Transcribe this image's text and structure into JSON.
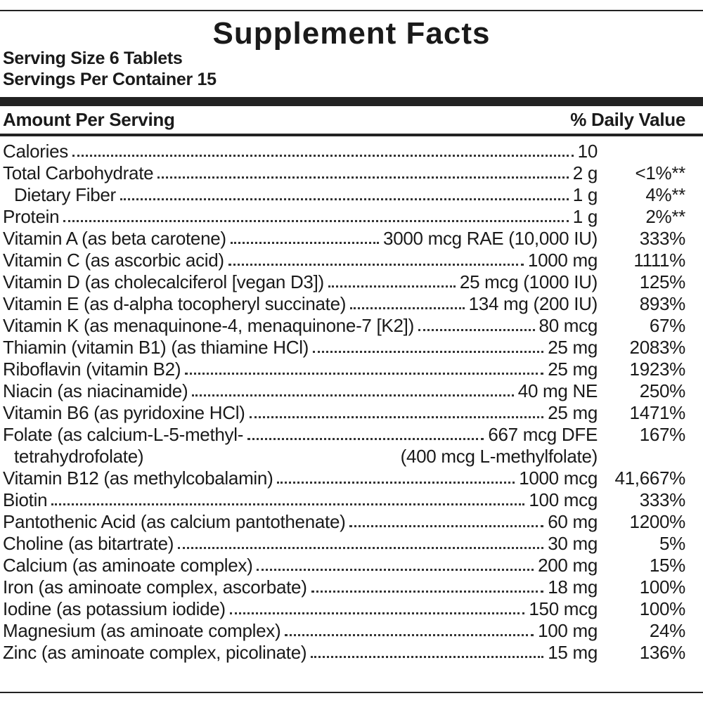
{
  "title": "Supplement Facts",
  "serving_size": "Serving Size 6 Tablets",
  "servings_per_container": "Servings Per Container 15",
  "header": {
    "amount": "Amount Per Serving",
    "daily_value": "% Daily Value"
  },
  "rows": [
    {
      "name": "Calories",
      "amount": "10"
    },
    {
      "name": "Total Carbohydrate",
      "amount": "2 g",
      "dv": "<1%**"
    },
    {
      "name": "Dietary Fiber",
      "amount": "1 g",
      "dv": "4%**",
      "indent": true
    },
    {
      "name": "Protein",
      "amount": "1 g",
      "dv": "2%**"
    },
    {
      "name": "Vitamin A (as beta carotene)",
      "amount": "3000 mcg RAE (10,000 IU)",
      "dv": "333%"
    },
    {
      "name": "Vitamin C (as ascorbic acid)",
      "amount": "1000 mg",
      "dv": "1111%"
    },
    {
      "name": "Vitamin D (as cholecalciferol [vegan D3])",
      "amount": "25 mcg (1000 IU)",
      "dv": "125%"
    },
    {
      "name": "Vitamin E (as d-alpha tocopheryl succinate)",
      "amount": "134 mg (200 IU)",
      "dv": "893%"
    },
    {
      "name": "Vitamin K (as menaquinone-4, menaquinone-7 [K2])",
      "amount": "80 mcg",
      "dv": "67%"
    },
    {
      "name": "Thiamin (vitamin B1) (as thiamine HCl)",
      "amount": "25 mg",
      "dv": "2083%"
    },
    {
      "name": "Riboflavin (vitamin B2)",
      "amount": "25 mg",
      "dv": "1923%"
    },
    {
      "name": "Niacin (as niacinamide)",
      "amount": "40 mg NE",
      "dv": "250%"
    },
    {
      "name": "Vitamin B6 (as pyridoxine HCl)",
      "amount": "25 mg",
      "dv": "1471%"
    },
    {
      "name": "Folate (as calcium-L-5-methyl-",
      "amount": "667 mcg DFE",
      "dv": "167%",
      "name_line2": "tetrahydrofolate)",
      "amount_line2": "(400 mcg L-methylfolate)"
    },
    {
      "name": "Vitamin B12 (as methylcobalamin)",
      "amount": "1000 mcg",
      "dv": "41,667%"
    },
    {
      "name": "Biotin",
      "amount": "100 mcg",
      "dv": "333%"
    },
    {
      "name": "Pantothenic Acid (as calcium pantothenate)",
      "amount": "60 mg",
      "dv": "1200%"
    },
    {
      "name": "Choline (as bitartrate)",
      "amount": "30 mg",
      "dv": "5%"
    },
    {
      "name": "Calcium (as aminoate complex)",
      "amount": "200 mg",
      "dv": "15%"
    },
    {
      "name": "Iron (as aminoate complex, ascorbate)",
      "amount": "18 mg",
      "dv": "100%"
    },
    {
      "name": "Iodine (as potassium iodide)",
      "amount": "150 mcg",
      "dv": "100%"
    },
    {
      "name": "Magnesium (as aminoate complex)",
      "amount": "100 mg",
      "dv": "24%"
    },
    {
      "name": "Zinc (as aminoate complex, picolinate)",
      "amount": "15 mg",
      "dv": "136%"
    }
  ]
}
